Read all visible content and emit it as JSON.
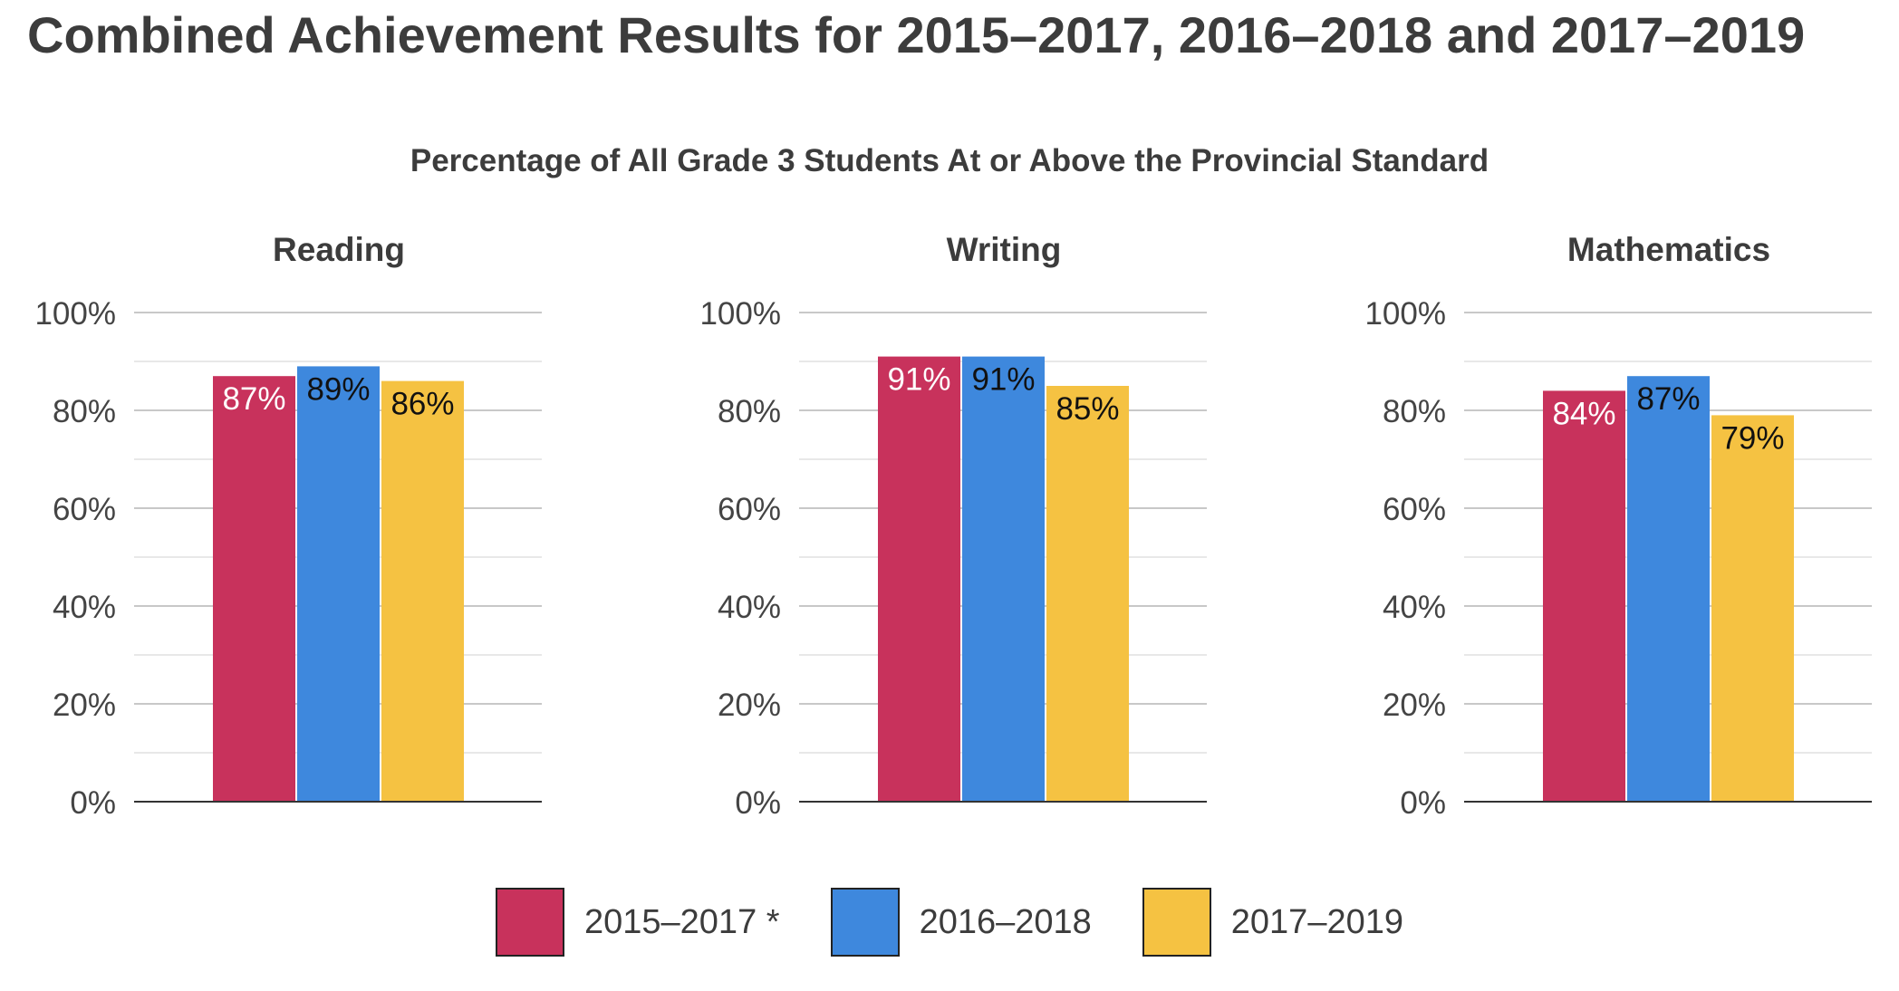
{
  "title": "Combined Achievement Results for 2015–2017, 2016–2018 and 2017–2019",
  "subtitle": "Percentage of All Grade 3 Students At or Above the Provincial Standard",
  "colors": {
    "s1": "#c8325c",
    "s2": "#3e88dd",
    "s3": "#f5c242"
  },
  "legend": [
    {
      "label": "2015–2017 *",
      "color": "#c8325c"
    },
    {
      "label": "2016–2018",
      "color": "#3e88dd"
    },
    {
      "label": "2017–2019",
      "color": "#f5c242"
    }
  ],
  "chart_data": [
    {
      "type": "bar",
      "title": "Reading",
      "series": [
        {
          "name": "2015–2017 *",
          "values": [
            87
          ],
          "labels": [
            "87%"
          ]
        },
        {
          "name": "2016–2018",
          "values": [
            89
          ],
          "labels": [
            "89%"
          ]
        },
        {
          "name": "2017–2019",
          "values": [
            86
          ],
          "labels": [
            "86%"
          ]
        }
      ],
      "yticks": [
        "0%",
        "20%",
        "40%",
        "60%",
        "80%",
        "100%"
      ],
      "ylim": [
        0,
        100
      ],
      "grid": true
    },
    {
      "type": "bar",
      "title": "Writing",
      "series": [
        {
          "name": "2015–2017 *",
          "values": [
            91
          ],
          "labels": [
            "91%"
          ]
        },
        {
          "name": "2016–2018",
          "values": [
            91
          ],
          "labels": [
            "91%"
          ]
        },
        {
          "name": "2017–2019",
          "values": [
            85
          ],
          "labels": [
            "85%"
          ]
        }
      ],
      "yticks": [
        "0%",
        "20%",
        "40%",
        "60%",
        "80%",
        "100%"
      ],
      "ylim": [
        0,
        100
      ],
      "grid": true
    },
    {
      "type": "bar",
      "title": "Mathematics",
      "series": [
        {
          "name": "2015–2017 *",
          "values": [
            84
          ],
          "labels": [
            "84%"
          ]
        },
        {
          "name": "2016–2018",
          "values": [
            87
          ],
          "labels": [
            "87%"
          ]
        },
        {
          "name": "2017–2019",
          "values": [
            79
          ],
          "labels": [
            "79%"
          ]
        }
      ],
      "yticks": [
        "0%",
        "20%",
        "40%",
        "60%",
        "80%",
        "100%"
      ],
      "ylim": [
        0,
        100
      ],
      "grid": true
    }
  ]
}
